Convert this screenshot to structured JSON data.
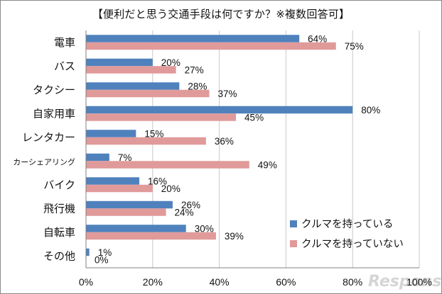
{
  "chart_data": {
    "type": "bar",
    "title": "【便利だと思う交通手段は何ですか？※複数回答可】",
    "categories": [
      "電車",
      "バス",
      "タクシー",
      "自家用車",
      "レンタカー",
      "カーシェアリング",
      "バイク",
      "飛行機",
      "自転車",
      "その他"
    ],
    "series": [
      {
        "name": "クルマを持っている",
        "values": [
          64,
          20,
          28,
          80,
          15,
          7,
          16,
          26,
          30,
          1
        ],
        "color": "#4f81bd"
      },
      {
        "name": "クルマを持っていない",
        "values": [
          75,
          27,
          37,
          45,
          36,
          49,
          20,
          24,
          39,
          0
        ],
        "color": "#e09a9a"
      }
    ],
    "xlim": [
      0,
      100
    ],
    "xticks": [
      0,
      20,
      40,
      60,
      80,
      100
    ],
    "unit": "%",
    "legend": "bottom-right",
    "grid": true,
    "orientation": "horizontal"
  },
  "watermark": "Response."
}
